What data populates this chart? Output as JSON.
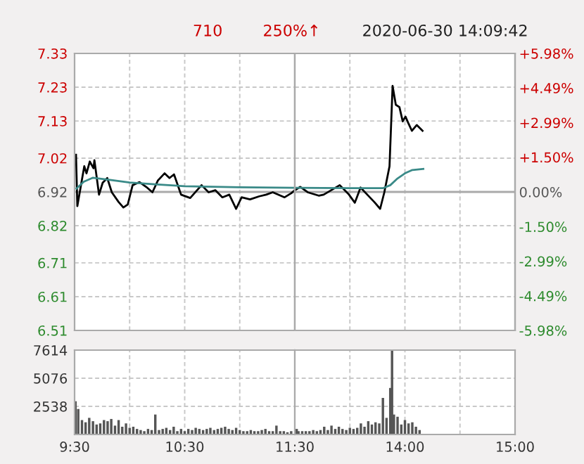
{
  "chart_data": [
    {
      "type": "line",
      "annotations": [
        "710",
        "250%↑",
        "2020-06-30 14:09:42"
      ],
      "series": [
        {
          "type": "line",
          "color": "#000000",
          "x": [
            9.513,
            9.525,
            9.588,
            9.608,
            9.638,
            9.672,
            9.68,
            9.722,
            9.755,
            9.797,
            9.838,
            9.9,
            9.943,
            9.983,
            10.027,
            10.09,
            10.15,
            10.207,
            10.257,
            10.317,
            10.362,
            10.403,
            10.467,
            10.55,
            10.653,
            10.717,
            10.778,
            10.842,
            10.905,
            10.967,
            11.017,
            11.093,
            11.177,
            11.24,
            11.3,
            11.407,
            11.467,
            11.5
          ],
          "values": [
            7.03,
            6.878,
            6.996,
            6.975,
            7.01,
            6.99,
            7.014,
            6.912,
            6.947,
            6.961,
            6.919,
            6.89,
            6.874,
            6.883,
            6.94,
            6.949,
            6.935,
            6.919,
            6.954,
            6.975,
            6.961,
            6.972,
            6.912,
            6.902,
            6.94,
            6.919,
            6.925,
            6.904,
            6.912,
            6.87,
            6.904,
            6.898,
            6.907,
            6.912,
            6.919,
            6.904,
            6.916,
            6.925
          ]
        },
        {
          "type": "line",
          "color": "#3a8a88",
          "x": [
            9.517,
            9.583,
            9.667,
            9.833,
            10,
            10.25,
            10.5,
            11,
            11.5
          ],
          "values": [
            6.93,
            6.95,
            6.962,
            6.955,
            6.948,
            6.942,
            6.937,
            6.934,
            6.932
          ]
        }
      ],
      "xlim": [
        9.5,
        11.5
      ],
      "xticks": [
        {
          "value": 9.5,
          "label": null
        },
        {
          "value": 10,
          "label": null
        },
        {
          "value": 10.5,
          "label": null
        },
        {
          "value": 11,
          "label": null
        },
        {
          "value": 11.5,
          "label": null
        }
      ],
      "ylim": [
        6.51,
        7.33
      ],
      "yticks": [
        6.51,
        6.61,
        6.71,
        6.82,
        6.92,
        7.02,
        7.13,
        7.23,
        7.33
      ],
      "ref_lines": [
        {
          "axis": "y",
          "value": 6.92,
          "color": "#aaaaaa"
        }
      ],
      "tick_labels": "y",
      "grid": true
    },
    {
      "type": "line",
      "series": [
        {
          "type": "line",
          "color": "#000000",
          "x": [
            13,
            13.05,
            13.117,
            13.217,
            13.262,
            13.408,
            13.492,
            13.545,
            13.597,
            13.658,
            13.722,
            13.775,
            13.813,
            13.86,
            13.888,
            13.917,
            13.95,
            13.98,
            14.005,
            14.033,
            14.063,
            14.107,
            14.16
          ],
          "values": [
            6.925,
            6.935,
            6.919,
            6.909,
            6.912,
            6.94,
            6.912,
            6.888,
            6.933,
            6.912,
            6.89,
            6.87,
            6.919,
            6.996,
            7.234,
            7.178,
            7.171,
            7.129,
            7.143,
            7.122,
            7.101,
            7.118,
            7.101
          ]
        },
        {
          "type": "line",
          "color": "#3a8a88",
          "x": [
            13,
            13.5,
            13.8,
            13.867,
            13.933,
            14,
            14.067,
            14.167
          ],
          "values": [
            6.932,
            6.931,
            6.931,
            6.94,
            6.96,
            6.975,
            6.985,
            6.988
          ]
        }
      ],
      "xlim": [
        13,
        15
      ],
      "xticks": [
        {
          "value": 13,
          "label": null
        },
        {
          "value": 13.5,
          "label": null
        },
        {
          "value": 14,
          "label": null
        },
        {
          "value": 14.5,
          "label": null
        },
        {
          "value": 15,
          "label": null
        }
      ],
      "ylim": [
        6.51,
        7.33
      ],
      "yticks": [
        6.51,
        6.61,
        6.71,
        6.82,
        6.92,
        7.02,
        7.13,
        7.23,
        7.33
      ],
      "y2lim": [
        -5.98,
        5.98
      ],
      "y2ticks": [
        {
          "value": -5.98,
          "label": "-5.98%"
        },
        {
          "value": -4.49,
          "label": "-4.49%"
        },
        {
          "value": -2.99,
          "label": "-2.99%"
        },
        {
          "value": -1.5,
          "label": "-1.50%"
        },
        {
          "value": 0,
          "label": "0.00%"
        },
        {
          "value": 1.5,
          "label": "+1.50%"
        },
        {
          "value": 2.99,
          "label": "+2.99%"
        },
        {
          "value": 4.49,
          "label": "+4.49%"
        },
        {
          "value": 5.98,
          "label": "+5.98%"
        }
      ],
      "ref_lines": [
        {
          "axis": "y",
          "value": 6.92,
          "color": "#aaaaaa"
        }
      ],
      "tick_labels": false,
      "grid": true
    },
    {
      "type": "bar",
      "color": "#555555",
      "x": [
        9.508,
        9.533,
        9.567,
        9.6,
        9.633,
        9.667,
        9.7,
        9.733,
        9.767,
        9.8,
        9.833,
        9.867,
        9.9,
        9.933,
        9.967,
        10,
        10.033,
        10.067,
        10.1,
        10.133,
        10.167,
        10.2,
        10.233,
        10.267,
        10.3,
        10.333,
        10.367,
        10.4,
        10.433,
        10.467,
        10.5,
        10.533,
        10.567,
        10.6,
        10.633,
        10.667,
        10.7,
        10.733,
        10.767,
        10.8,
        10.833,
        10.867,
        10.9,
        10.933,
        10.967,
        11,
        11.033,
        11.067,
        11.1,
        11.133,
        11.167,
        11.2,
        11.233,
        11.267,
        11.3,
        11.333,
        11.367,
        11.4,
        11.433,
        11.467
      ],
      "values": [
        3000,
        2300,
        1300,
        1100,
        1500,
        1200,
        900,
        1000,
        1300,
        1200,
        1400,
        800,
        1300,
        700,
        1000,
        600,
        700,
        500,
        400,
        300,
        500,
        400,
        1800,
        400,
        500,
        600,
        400,
        700,
        300,
        500,
        300,
        500,
        400,
        600,
        500,
        400,
        500,
        600,
        400,
        500,
        600,
        700,
        500,
        400,
        600,
        400,
        300,
        300,
        400,
        300,
        300,
        400,
        500,
        300,
        300,
        800,
        300,
        300,
        200,
        300
      ],
      "xlim": [
        9.5,
        11.5
      ],
      "xticks": [
        {
          "value": 9.5,
          "label": "9:30"
        },
        {
          "value": 10,
          "label": null
        },
        {
          "value": 10.5,
          "label": "10:30"
        },
        {
          "value": 11,
          "label": null
        },
        {
          "value": 11.5,
          "label": "11:30"
        }
      ],
      "ylim": [
        0,
        7614
      ],
      "yticks": [
        {
          "value": 0,
          "label": null
        },
        2538,
        5076,
        7614
      ],
      "grid": true
    },
    {
      "type": "bar",
      "color": "#555555",
      "x": [
        13.017,
        13.033,
        13.067,
        13.1,
        13.133,
        13.167,
        13.2,
        13.233,
        13.267,
        13.3,
        13.333,
        13.367,
        13.4,
        13.433,
        13.467,
        13.5,
        13.533,
        13.567,
        13.6,
        13.633,
        13.667,
        13.7,
        13.733,
        13.767,
        13.8,
        13.833,
        13.867,
        13.883,
        13.9,
        13.933,
        13.967,
        14,
        14.033,
        14.067,
        14.1,
        14.133
      ],
      "values": [
        500,
        300,
        300,
        300,
        300,
        400,
        300,
        400,
        700,
        400,
        800,
        500,
        700,
        500,
        400,
        600,
        500,
        600,
        1000,
        700,
        1200,
        900,
        1100,
        1000,
        3300,
        1500,
        4200,
        7614,
        1800,
        1600,
        900,
        1300,
        1000,
        1100,
        700,
        400
      ],
      "xlim": [
        13,
        15
      ],
      "xticks": [
        {
          "value": 13,
          "label": null
        },
        {
          "value": 13.5,
          "label": null
        },
        {
          "value": 14,
          "label": "14:00"
        },
        {
          "value": 14.5,
          "label": null
        },
        {
          "value": 15,
          "label": "15:00"
        }
      ],
      "ylim": [
        0,
        7614
      ],
      "yticks": [
        {
          "value": 0,
          "label": null
        },
        {
          "value": 2538,
          "label": null
        },
        {
          "value": 5076,
          "label": null
        },
        {
          "value": 7614,
          "label": null
        }
      ],
      "tick_labels": "x",
      "grid": true
    }
  ]
}
